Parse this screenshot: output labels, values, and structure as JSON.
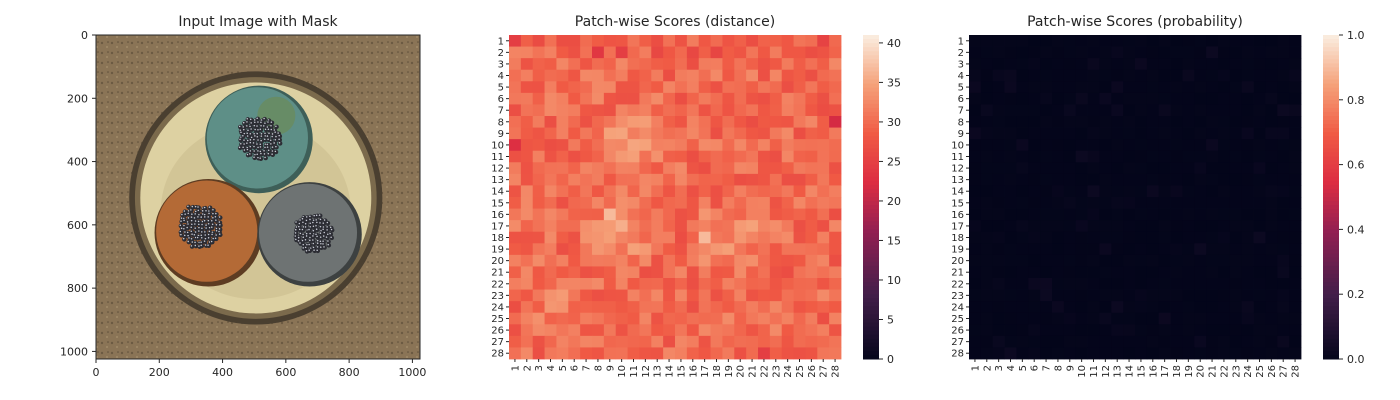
{
  "chart_data": [
    {
      "type": "image",
      "title": "Input Image with Mask",
      "xlim": [
        0,
        1024
      ],
      "ylim": [
        1024,
        0
      ],
      "xticks": [
        "0",
        "200",
        "400",
        "600",
        "800",
        "1000"
      ],
      "yticks": [
        "0",
        "200",
        "400",
        "600",
        "800",
        "1000"
      ],
      "colors": {
        "background": "#8a7456",
        "cup_rim": "#4a3f30",
        "filler": "#ddd1a2",
        "cable_teal": "#5e8f87",
        "cable_brown": "#b46a36",
        "cable_grey": "#6e7373",
        "strands": "#2c2d34"
      }
    },
    {
      "type": "heatmap",
      "title": "Patch-wise Scores (distance)",
      "rows": 28,
      "cols": 28,
      "row_labels": [
        "1",
        "2",
        "3",
        "4",
        "5",
        "6",
        "7",
        "8",
        "9",
        "10",
        "11",
        "12",
        "13",
        "14",
        "15",
        "16",
        "17",
        "18",
        "19",
        "20",
        "21",
        "22",
        "23",
        "24",
        "25",
        "26",
        "27",
        "28"
      ],
      "col_labels": [
        "1",
        "2",
        "3",
        "4",
        "5",
        "6",
        "7",
        "8",
        "9",
        "10",
        "11",
        "12",
        "13",
        "14",
        "15",
        "16",
        "17",
        "18",
        "19",
        "20",
        "21",
        "22",
        "23",
        "24",
        "25",
        "26",
        "27",
        "28"
      ],
      "value_range": [
        0,
        41
      ],
      "colorbar_ticks": [
        "0",
        "5",
        "10",
        "15",
        "20",
        "25",
        "30",
        "35",
        "40"
      ],
      "colorbar_tick_values": [
        0,
        5,
        10,
        15,
        20,
        25,
        30,
        35,
        40
      ],
      "colormap": "rocket",
      "typical_value": 30,
      "hot_spots": [
        {
          "row": 9,
          "col": 9,
          "value": 35
        },
        {
          "row": 10,
          "col": 12,
          "value": 35
        },
        {
          "row": 16,
          "col": 9,
          "value": 37
        },
        {
          "row": 17,
          "col": 10,
          "value": 36
        },
        {
          "row": 18,
          "col": 17,
          "value": 37
        },
        {
          "row": 17,
          "col": 21,
          "value": 35
        },
        {
          "row": 24,
          "col": 4,
          "value": 34
        }
      ],
      "low_spots": [
        {
          "row": 1,
          "col": 1,
          "value": 25
        },
        {
          "row": 2,
          "col": 8,
          "value": 24
        },
        {
          "row": 2,
          "col": 10,
          "value": 25
        },
        {
          "row": 8,
          "col": 28,
          "value": 22
        },
        {
          "row": 10,
          "col": 1,
          "value": 23
        },
        {
          "row": 28,
          "col": 22,
          "value": 25
        }
      ]
    },
    {
      "type": "heatmap",
      "title": "Patch-wise Scores (probability)",
      "rows": 28,
      "cols": 28,
      "row_labels": [
        "1",
        "2",
        "3",
        "4",
        "5",
        "6",
        "7",
        "8",
        "9",
        "10",
        "11",
        "12",
        "13",
        "14",
        "15",
        "16",
        "17",
        "18",
        "19",
        "20",
        "21",
        "22",
        "23",
        "24",
        "25",
        "26",
        "27",
        "28"
      ],
      "col_labels": [
        "1",
        "2",
        "3",
        "4",
        "5",
        "6",
        "7",
        "8",
        "9",
        "10",
        "11",
        "12",
        "13",
        "14",
        "15",
        "16",
        "17",
        "18",
        "19",
        "20",
        "21",
        "22",
        "23",
        "24",
        "25",
        "26",
        "27",
        "28"
      ],
      "value_range": [
        0,
        1
      ],
      "colorbar_ticks": [
        "0.0",
        "0.2",
        "0.4",
        "0.6",
        "0.8",
        "1.0"
      ],
      "colorbar_tick_values": [
        0,
        0.2,
        0.4,
        0.6,
        0.8,
        1.0
      ],
      "colormap": "rocket",
      "typical_value": 0.0,
      "max_value": 0.03
    }
  ]
}
